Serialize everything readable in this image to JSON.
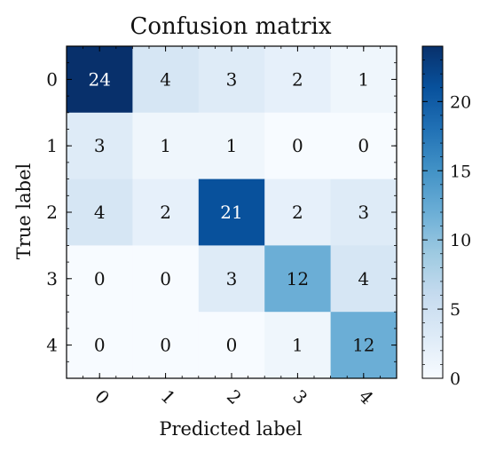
{
  "chart_data": {
    "type": "heatmap",
    "title": "Confusion matrix",
    "xlabel": "Predicted label",
    "ylabel": "True label",
    "x_categories": [
      "0",
      "1",
      "2",
      "3",
      "4"
    ],
    "y_categories": [
      "0",
      "1",
      "2",
      "3",
      "4"
    ],
    "matrix": [
      [
        24,
        4,
        3,
        2,
        1
      ],
      [
        3,
        1,
        1,
        0,
        0
      ],
      [
        4,
        2,
        21,
        2,
        3
      ],
      [
        0,
        0,
        3,
        12,
        4
      ],
      [
        0,
        0,
        0,
        1,
        12
      ]
    ],
    "colormap": "Blues",
    "color_range": [
      0,
      24
    ],
    "colorbar": {
      "ticks": [
        0,
        5,
        10,
        15,
        20
      ]
    },
    "x_tick_rotation_deg": 45
  }
}
